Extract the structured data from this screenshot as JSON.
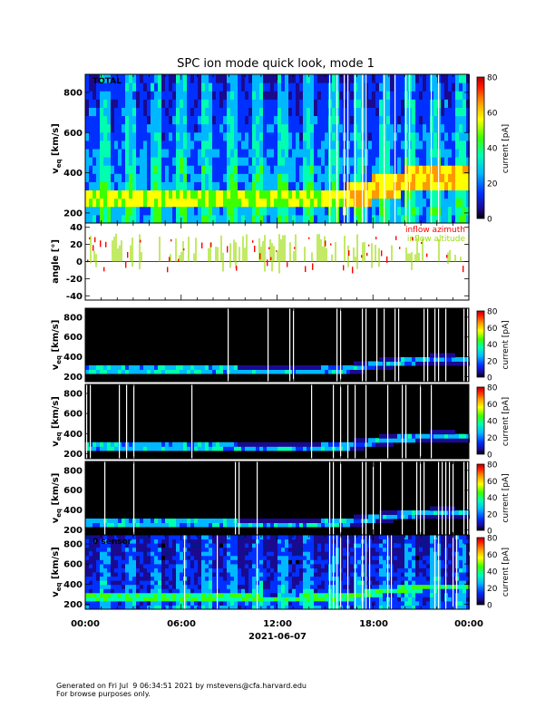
{
  "title": "SPC ion mode quick look, mode 1",
  "chart_data": [
    {
      "type": "heatmap",
      "name": "total",
      "panel_label": "TOTAL",
      "ylabel": "v",
      "ylabel_sub": "eq",
      "ylabel_unit": "[km/s]",
      "ylim": [
        150,
        890
      ],
      "yticks": [
        200,
        400,
        600,
        800
      ],
      "colorbar": {
        "label": "current [pA]",
        "range": [
          0,
          80
        ],
        "ticks": [
          0,
          20,
          40,
          60,
          80
        ]
      },
      "peak_velocity": {
        "times_hours": [
          0,
          4,
          8,
          12,
          16,
          18,
          20,
          22,
          24
        ],
        "values_kms": [
          280,
          275,
          268,
          262,
          268,
          320,
          360,
          370,
          365
        ]
      }
    },
    {
      "type": "scatter",
      "name": "angle",
      "ylabel": "angle [°]",
      "ylim": [
        -45,
        45
      ],
      "yticks": [
        -40,
        -20,
        0,
        20,
        40
      ],
      "series": [
        {
          "name": "inflow azimuth",
          "color": "#ff0000"
        },
        {
          "name": "inflow altitude",
          "color": "#99dd00"
        }
      ]
    },
    {
      "type": "heatmap",
      "name": "sensor-1",
      "ylabel": "v",
      "ylabel_sub": "eq",
      "ylabel_unit": "[km/s]",
      "ylim": [
        150,
        890
      ],
      "yticks": [
        200,
        400,
        600,
        800
      ],
      "colorbar": {
        "label": "current [pA]",
        "range": [
          0,
          80
        ],
        "ticks": [
          0,
          20,
          40,
          60,
          80
        ]
      }
    },
    {
      "type": "heatmap",
      "name": "sensor-2",
      "ylabel": "v",
      "ylabel_sub": "eq",
      "ylabel_unit": "[km/s]",
      "ylim": [
        150,
        890
      ],
      "yticks": [
        200,
        400,
        600,
        800
      ],
      "colorbar": {
        "label": "current [pA]",
        "range": [
          0,
          80
        ],
        "ticks": [
          0,
          20,
          40,
          60,
          80
        ]
      }
    },
    {
      "type": "heatmap",
      "name": "sensor-3",
      "ylabel": "v",
      "ylabel_sub": "eq",
      "ylabel_unit": "[km/s]",
      "ylim": [
        150,
        890
      ],
      "yticks": [
        200,
        400,
        600,
        800
      ],
      "colorbar": {
        "label": "current [pA]",
        "range": [
          0,
          80
        ],
        "ticks": [
          0,
          20,
          40,
          60,
          80
        ]
      }
    },
    {
      "type": "heatmap",
      "name": "sensor-0",
      "panel_label": "0 sensor",
      "ylabel": "v",
      "ylabel_sub": "eq",
      "ylabel_unit": "[km/s]",
      "ylim": [
        150,
        890
      ],
      "yticks": [
        200,
        400,
        600,
        800
      ],
      "colorbar": {
        "label": "current [pA]",
        "range": [
          0,
          80
        ],
        "ticks": [
          0,
          20,
          40,
          60,
          80
        ]
      }
    }
  ],
  "x_axis": {
    "tick_labels": [
      "00:00",
      "06:00",
      "12:00",
      "18:00",
      "00:00"
    ],
    "date_label": "2021-06-07",
    "range_hours": [
      0,
      24
    ]
  },
  "footer": {
    "line1": "Generated on Fri Jul  9 06:34:51 2021 by mstevens@cfa.harvard.edu",
    "line2": "For browse purposes only."
  }
}
